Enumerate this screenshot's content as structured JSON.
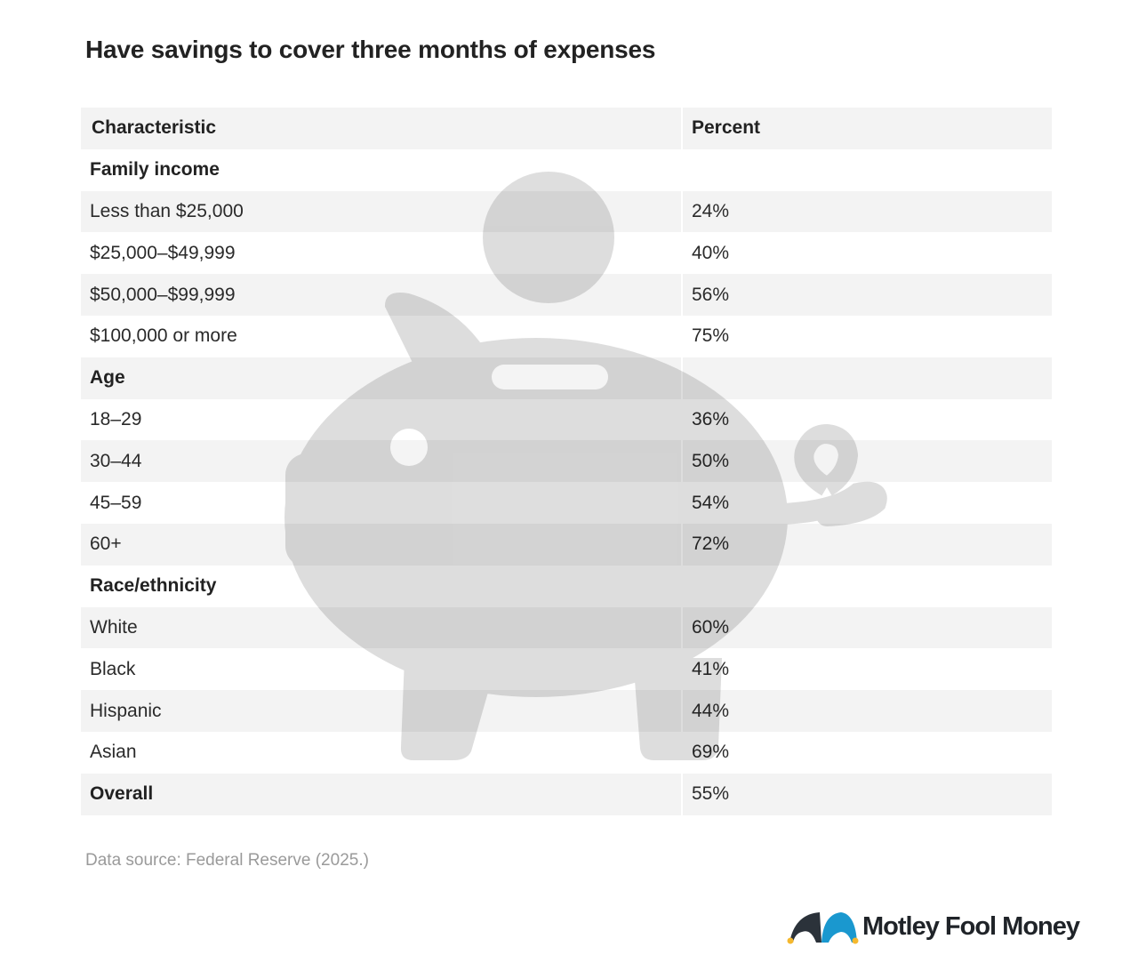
{
  "chart_data": {
    "type": "table",
    "title": "Have savings to cover three months of expenses",
    "columns": [
      "Characteristic",
      "Percent"
    ],
    "rows": [
      {
        "label": "Family income",
        "value": "",
        "group": true
      },
      {
        "label": "Less than $25,000",
        "value": "24%"
      },
      {
        "label": "$25,000–$49,999",
        "value": "40%"
      },
      {
        "label": "$50,000–$99,999",
        "value": "56%"
      },
      {
        "label": "$100,000 or more",
        "value": "75%"
      },
      {
        "label": "Age",
        "value": "",
        "group": true
      },
      {
        "label": "18–29",
        "value": "36%"
      },
      {
        "label": "30–44",
        "value": "50%"
      },
      {
        "label": "45–59",
        "value": "54%"
      },
      {
        "label": "60+",
        "value": "72%"
      },
      {
        "label": "Race/ethnicity",
        "value": "",
        "group": true
      },
      {
        "label": "White",
        "value": "60%"
      },
      {
        "label": "Black",
        "value": "41%"
      },
      {
        "label": "Hispanic",
        "value": "44%"
      },
      {
        "label": "Asian",
        "value": "69%"
      },
      {
        "label": "Overall",
        "value": "55%",
        "group": true
      }
    ],
    "source": "Data source: Federal Reserve (2025.)"
  },
  "watermark_icon": "piggy-bank-icon",
  "logo": {
    "text": "Motley Fool Money",
    "colors": {
      "dark": "#2b323a",
      "blue": "#1a98cf",
      "gold": "#f5b82e"
    }
  },
  "colors": {
    "row_alt": "#f3f3f3",
    "text": "#2a2a2a",
    "source_text": "#9a9a9a"
  }
}
